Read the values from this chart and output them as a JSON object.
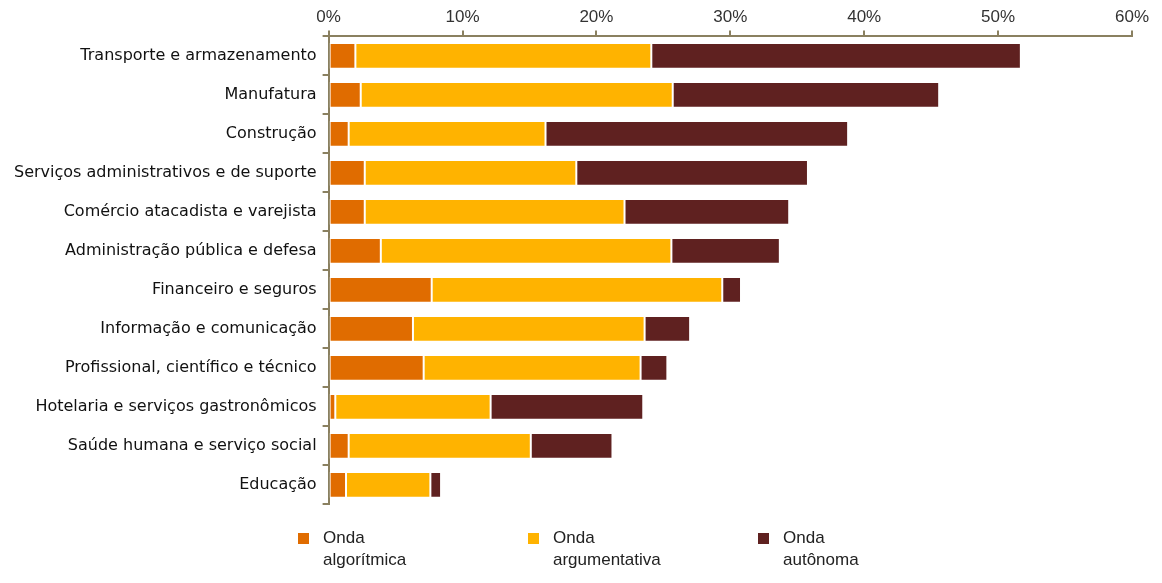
{
  "chart_data": {
    "type": "bar",
    "orientation": "horizontal",
    "stacked": true,
    "categories": [
      "Transporte e armazenamento",
      "Manufatura",
      "Construção",
      "Serviços administrativos e de suporte",
      "Comércio atacadista e varejista",
      "Administração pública e defesa",
      "Financeiro e seguros",
      "Informação e comunicação",
      "Profissional, científico e técnico",
      "Hotelaria e serviços gastronômicos",
      "Saúde humana e serviço social",
      "Educação"
    ],
    "series": [
      {
        "name": "Onda algorítmica",
        "color": "#e06c00",
        "values": [
          2.0,
          2.4,
          1.5,
          2.7,
          2.7,
          3.9,
          7.7,
          6.3,
          7.1,
          0.5,
          1.5,
          1.3
        ]
      },
      {
        "name": "Onda argumentativa",
        "color": "#ffb300",
        "values": [
          22.1,
          23.3,
          14.7,
          15.8,
          19.4,
          21.7,
          21.7,
          17.3,
          16.2,
          11.6,
          13.6,
          6.3
        ]
      },
      {
        "name": "Onda autônoma",
        "color": "#5f2120",
        "values": [
          27.6,
          19.9,
          22.6,
          17.3,
          12.3,
          8.1,
          1.4,
          3.4,
          2.0,
          11.4,
          6.1,
          0.8
        ]
      }
    ],
    "xlim": [
      0,
      60
    ],
    "xticks": [
      {
        "value": 0,
        "label": "0%"
      },
      {
        "value": 10,
        "label": "10%"
      },
      {
        "value": 20,
        "label": "20%"
      },
      {
        "value": 30,
        "label": "30%"
      },
      {
        "value": 40,
        "label": "40%"
      },
      {
        "value": 50,
        "label": "50%"
      },
      {
        "value": 60,
        "label": "60%"
      }
    ],
    "grid": false,
    "legend": "bottom"
  }
}
